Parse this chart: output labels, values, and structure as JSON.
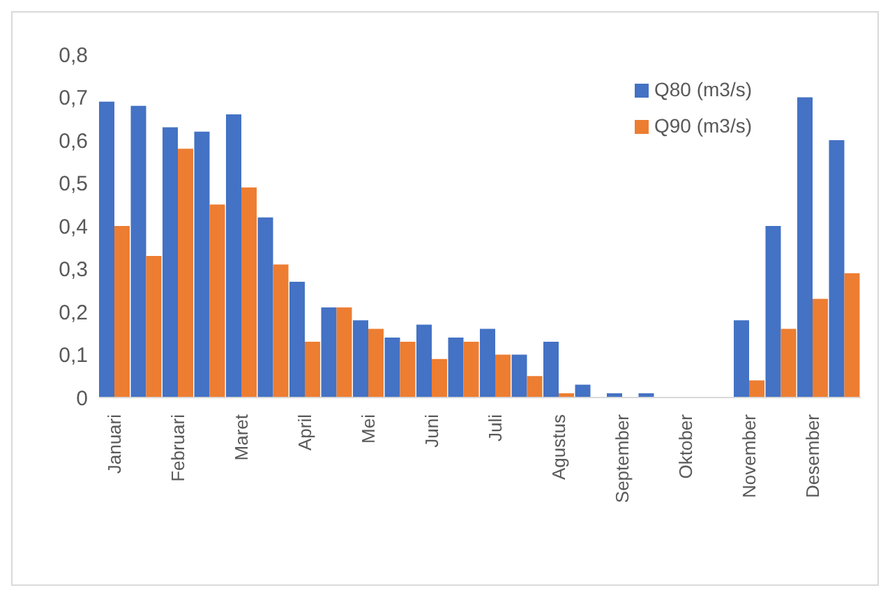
{
  "chart_data": {
    "type": "bar",
    "categories": [
      "Januari",
      null,
      "Februari",
      null,
      "Maret",
      null,
      "April",
      null,
      "Mei",
      null,
      "Juni",
      null,
      "Juli",
      null,
      "Agustus",
      null,
      "September",
      null,
      "Oktober",
      null,
      "November",
      null,
      "Desember",
      null
    ],
    "series": [
      {
        "name": "Q80 (m3/s)",
        "color": "#4472c4",
        "values": [
          0.69,
          0.68,
          0.63,
          0.62,
          0.66,
          0.42,
          0.27,
          0.21,
          0.18,
          0.14,
          0.17,
          0.14,
          0.16,
          0.1,
          0.13,
          0.03,
          0.01,
          0.01,
          0,
          0,
          0.18,
          0.4,
          0.7,
          0.6
        ]
      },
      {
        "name": "Q90 (m3/s)",
        "color": "#ed7d31",
        "values": [
          0.4,
          0.33,
          0.58,
          0.45,
          0.49,
          0.31,
          0.13,
          0.21,
          0.16,
          0.13,
          0.09,
          0.13,
          0.1,
          0.05,
          0.01,
          0,
          0,
          0,
          0,
          0,
          0.04,
          0.16,
          0.23,
          0.29
        ]
      }
    ],
    "ylim": [
      0,
      0.8
    ],
    "yticks": [
      {
        "value": 0,
        "label": "0"
      },
      {
        "value": 0.1,
        "label": "0,1"
      },
      {
        "value": 0.2,
        "label": "0,2"
      },
      {
        "value": 0.3,
        "label": "0,3"
      },
      {
        "value": 0.4,
        "label": "0,4"
      },
      {
        "value": 0.5,
        "label": "0,5"
      },
      {
        "value": 0.6,
        "label": "0,6"
      },
      {
        "value": 0.7,
        "label": "0,7"
      },
      {
        "value": 0.8,
        "label": "0,8"
      }
    ],
    "grid": false,
    "legend": "top right"
  }
}
